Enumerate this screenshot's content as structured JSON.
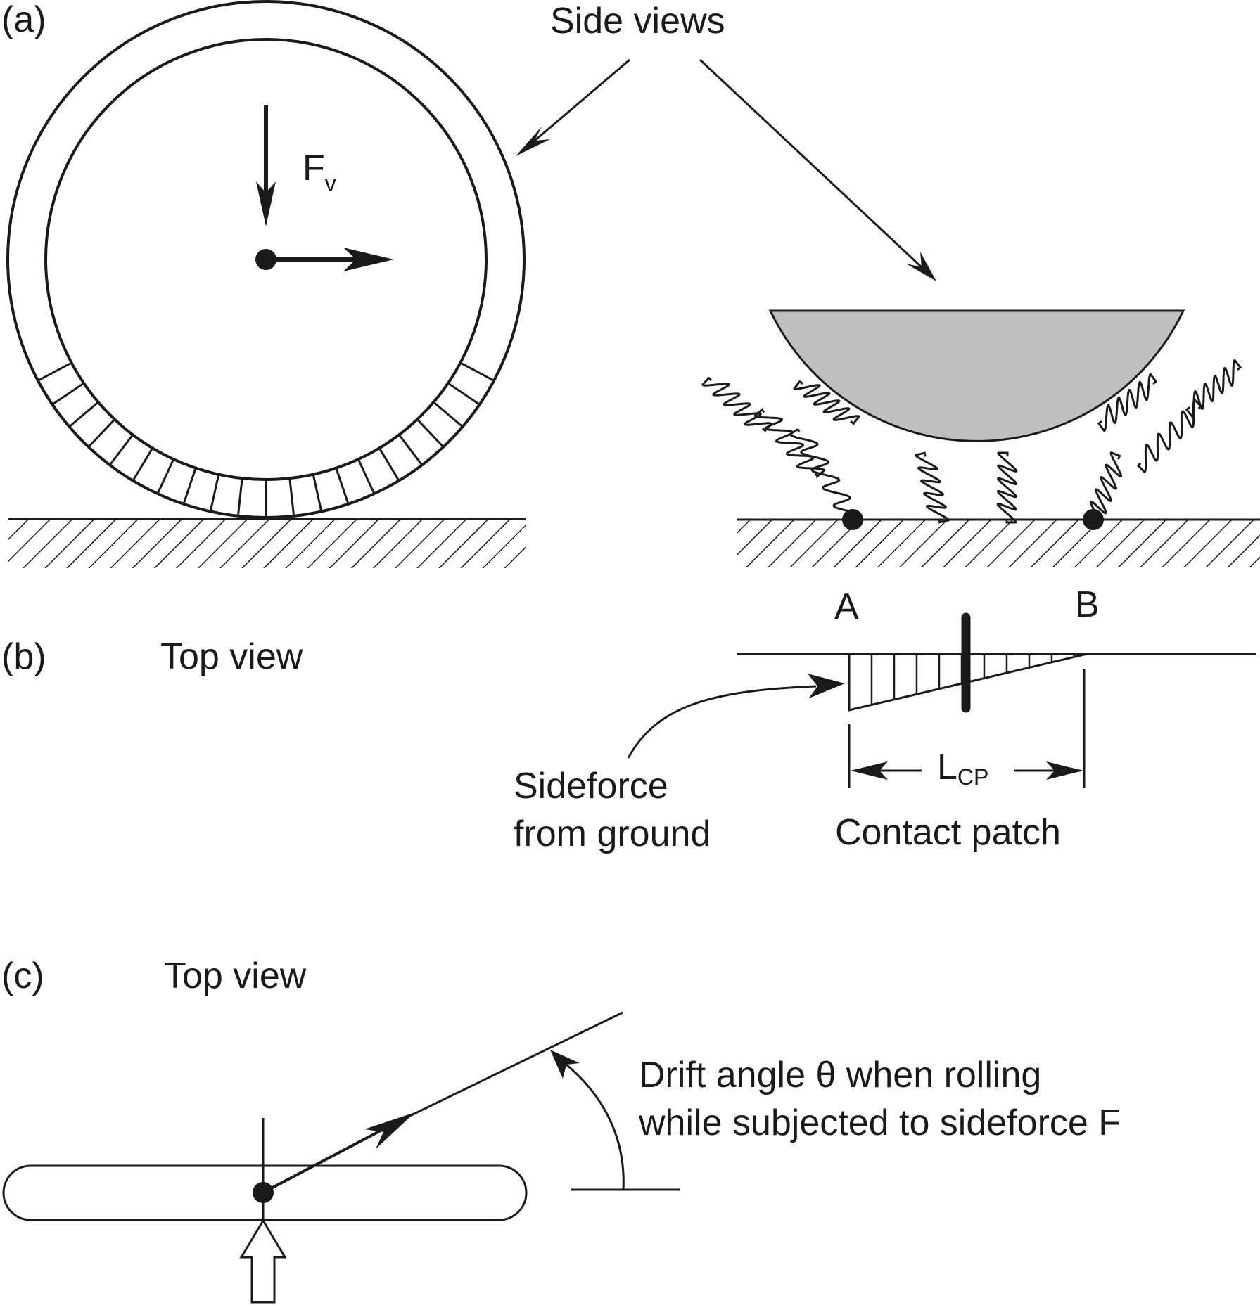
{
  "panels": {
    "a": {
      "label": "(a)",
      "title": "Side views"
    },
    "b": {
      "label": "(b)",
      "title": "Top view"
    },
    "c": {
      "label": "(c)",
      "title": "Top view"
    }
  },
  "labels": {
    "force_main": "F",
    "force_sub": "v",
    "point_a": "A",
    "point_b": "B",
    "length_main": "L",
    "length_sub": "CP",
    "contact_patch": "Contact patch",
    "sideforce_line1": "Sideforce",
    "sideforce_line2": "from ground",
    "drift_line1": "Drift angle θ when rolling",
    "drift_line2": "while subjected to sideforce F"
  },
  "colors": {
    "ink": "#1a1a1a",
    "tire_shade": "#bfbfbf",
    "background": "#ffffff"
  }
}
